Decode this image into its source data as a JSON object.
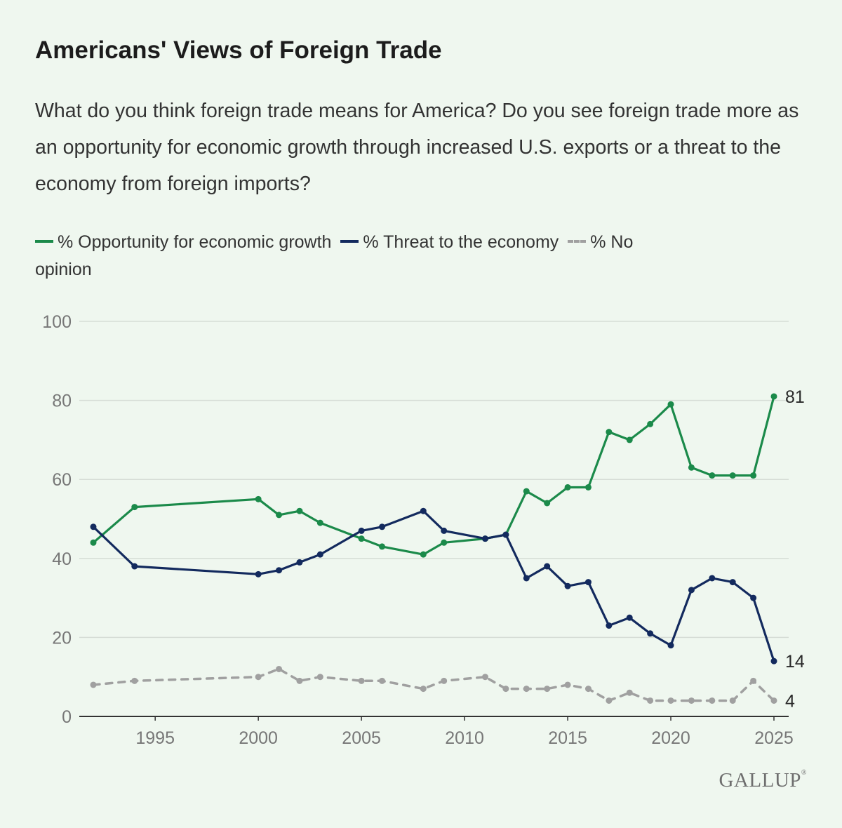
{
  "title": "Americans' Views of Foreign Trade",
  "subtitle": "What do you think foreign trade means for America? Do you see foreign trade more as an opportunity for economic growth through increased U.S. exports or a threat to the economy from foreign imports?",
  "legend": {
    "opportunity": "% Opportunity for economic growth",
    "threat": "% Threat to the economy",
    "no_opinion_a": "% No",
    "no_opinion_b": "opinion"
  },
  "logo": "GALLUP",
  "colors": {
    "opportunity": "#1b8a4a",
    "threat": "#132a5e",
    "no_opinion": "#a0a0a0",
    "grid": "#d6ddd6",
    "axis": "#333333",
    "tick_label": "#777777"
  },
  "chart_data": {
    "type": "line",
    "title": "Americans' Views of Foreign Trade",
    "xlabel": "",
    "ylabel": "",
    "xlim": [
      1992,
      2025
    ],
    "ylim": [
      0,
      100
    ],
    "y_ticks": [
      0,
      20,
      40,
      60,
      80,
      100
    ],
    "x_ticks": [
      1995,
      2000,
      2005,
      2010,
      2015,
      2020,
      2025
    ],
    "grid": true,
    "legend_position": "top",
    "series": [
      {
        "key": "opportunity",
        "name": "% Opportunity for economic growth",
        "style": "solid",
        "points": [
          [
            1992,
            44
          ],
          [
            1994,
            53
          ],
          [
            2000,
            55
          ],
          [
            2001,
            51
          ],
          [
            2002,
            52
          ],
          [
            2003,
            49
          ],
          [
            2005,
            45
          ],
          [
            2006,
            43
          ],
          [
            2008,
            41
          ],
          [
            2009,
            44
          ],
          [
            2011,
            45
          ],
          [
            2012,
            46
          ],
          [
            2013,
            57
          ],
          [
            2014,
            54
          ],
          [
            2015,
            58
          ],
          [
            2016,
            58
          ],
          [
            2017,
            72
          ],
          [
            2018,
            70
          ],
          [
            2019,
            74
          ],
          [
            2020,
            79
          ],
          [
            2021,
            63
          ],
          [
            2022,
            61
          ],
          [
            2023,
            61
          ],
          [
            2024,
            61
          ],
          [
            2025,
            81
          ]
        ],
        "end_label": "81"
      },
      {
        "key": "threat",
        "name": "% Threat to the economy",
        "style": "solid",
        "points": [
          [
            1992,
            48
          ],
          [
            1994,
            38
          ],
          [
            2000,
            36
          ],
          [
            2001,
            37
          ],
          [
            2002,
            39
          ],
          [
            2003,
            41
          ],
          [
            2005,
            47
          ],
          [
            2006,
            48
          ],
          [
            2008,
            52
          ],
          [
            2009,
            47
          ],
          [
            2011,
            45
          ],
          [
            2012,
            46
          ],
          [
            2013,
            35
          ],
          [
            2014,
            38
          ],
          [
            2015,
            33
          ],
          [
            2016,
            34
          ],
          [
            2017,
            23
          ],
          [
            2018,
            25
          ],
          [
            2019,
            21
          ],
          [
            2020,
            18
          ],
          [
            2021,
            32
          ],
          [
            2022,
            35
          ],
          [
            2023,
            34
          ],
          [
            2024,
            30
          ],
          [
            2025,
            14
          ]
        ],
        "end_label": "14"
      },
      {
        "key": "no_opinion",
        "name": "% No opinion",
        "style": "dashed",
        "points": [
          [
            1992,
            8
          ],
          [
            1994,
            9
          ],
          [
            2000,
            10
          ],
          [
            2001,
            12
          ],
          [
            2002,
            9
          ],
          [
            2003,
            10
          ],
          [
            2005,
            9
          ],
          [
            2006,
            9
          ],
          [
            2008,
            7
          ],
          [
            2009,
            9
          ],
          [
            2011,
            10
          ],
          [
            2012,
            7
          ],
          [
            2013,
            7
          ],
          [
            2014,
            7
          ],
          [
            2015,
            8
          ],
          [
            2016,
            7
          ],
          [
            2017,
            4
          ],
          [
            2018,
            6
          ],
          [
            2019,
            4
          ],
          [
            2020,
            4
          ],
          [
            2021,
            4
          ],
          [
            2022,
            4
          ],
          [
            2023,
            4
          ],
          [
            2024,
            9
          ],
          [
            2025,
            4
          ]
        ],
        "end_label": "4"
      }
    ]
  }
}
